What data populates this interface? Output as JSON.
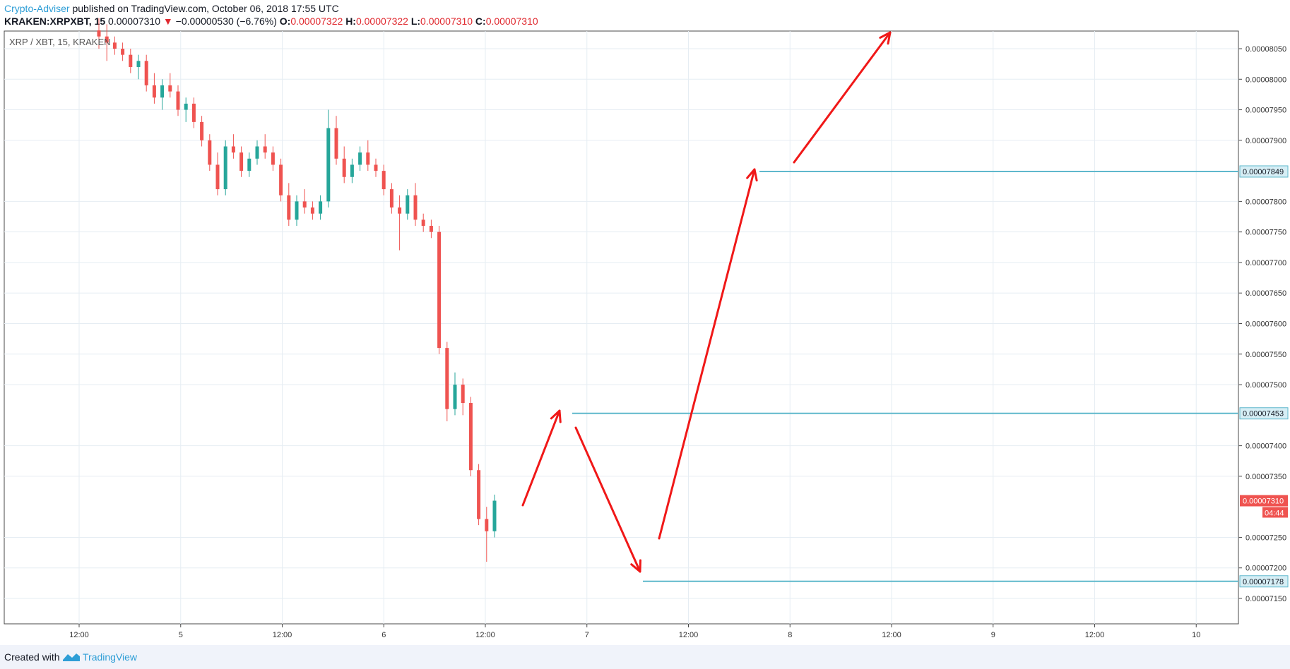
{
  "header": {
    "author": "Crypto-Adviser",
    "published_text": " published on TradingView.com, October 06, 2018 17:55 UTC",
    "symbol_line": "KRAKEN:XRPXBT, 15",
    "last_value": "0.00007310",
    "change_arrow": "▼",
    "change": "−0.00000530 (−6.76%)",
    "o_label": "O:",
    "o_value": "0.00007322",
    "h_label": "H:",
    "h_value": "0.00007322",
    "l_label": "L:",
    "l_value": "0.00007310",
    "c_label": "C:",
    "c_value": "0.00007310"
  },
  "chart_title": "XRP / XBT, 15, KRAKEN",
  "footer": {
    "created_with": "Created with",
    "brand": "TradingView"
  },
  "colors": {
    "up": "#26a69a",
    "down": "#ef5350",
    "level_line": "#5fb8cc",
    "arrow": "#f01818",
    "grid": "#e6edf3",
    "price_tag": "#ef5350"
  },
  "chart_data": {
    "type": "candlestick",
    "symbol": "XRP / XBT, 15, KRAKEN",
    "y_ticks": [
      "0.00008050",
      "0.00008000",
      "0.00007950",
      "0.00007900",
      "0.00007800",
      "0.00007750",
      "0.00007700",
      "0.00007650",
      "0.00007600",
      "0.00007550",
      "0.00007500",
      "0.00007400",
      "0.00007350",
      "0.00007250",
      "0.00007200",
      "0.00007150"
    ],
    "x_ticks": [
      "12:00",
      "5",
      "12:00",
      "6",
      "12:00",
      "7",
      "12:00",
      "8",
      "12:00",
      "9",
      "12:00",
      "10"
    ],
    "levels": [
      {
        "value": "0.00007849"
      },
      {
        "value": "0.00007453"
      },
      {
        "value": "0.00007178"
      }
    ],
    "current_price": {
      "value": "0.00007310",
      "countdown": "04:44"
    },
    "candles": [
      [
        8.08e-05,
        8.1e-05,
        8.05e-05,
        8.07e-05
      ],
      [
        8.07e-05,
        8.09e-05,
        8.03e-05,
        8.06e-05
      ],
      [
        8.06e-05,
        8.07e-05,
        8.04e-05,
        8.05e-05
      ],
      [
        8.05e-05,
        8.06e-05,
        8.03e-05,
        8.04e-05
      ],
      [
        8.04e-05,
        8.05e-05,
        8.01e-05,
        8.02e-05
      ],
      [
        8.02e-05,
        8.04e-05,
        8e-05,
        8.03e-05
      ],
      [
        8.03e-05,
        8.04e-05,
        7.98e-05,
        7.99e-05
      ],
      [
        7.99e-05,
        8.01e-05,
        7.96e-05,
        7.97e-05
      ],
      [
        7.97e-05,
        8e-05,
        7.95e-05,
        7.99e-05
      ],
      [
        7.99e-05,
        8.01e-05,
        7.97e-05,
        7.98e-05
      ],
      [
        7.98e-05,
        7.99e-05,
        7.94e-05,
        7.95e-05
      ],
      [
        7.95e-05,
        7.97e-05,
        7.93e-05,
        7.96e-05
      ],
      [
        7.96e-05,
        7.97e-05,
        7.92e-05,
        7.93e-05
      ],
      [
        7.93e-05,
        7.94e-05,
        7.89e-05,
        7.9e-05
      ],
      [
        7.9e-05,
        7.91e-05,
        7.85e-05,
        7.86e-05
      ],
      [
        7.86e-05,
        7.88e-05,
        7.81e-05,
        7.82e-05
      ],
      [
        7.82e-05,
        7.9e-05,
        7.81e-05,
        7.89e-05
      ],
      [
        7.89e-05,
        7.91e-05,
        7.87e-05,
        7.88e-05
      ],
      [
        7.88e-05,
        7.89e-05,
        7.84e-05,
        7.85e-05
      ],
      [
        7.85e-05,
        7.88e-05,
        7.84e-05,
        7.87e-05
      ],
      [
        7.87e-05,
        7.9e-05,
        7.86e-05,
        7.89e-05
      ],
      [
        7.89e-05,
        7.91e-05,
        7.87e-05,
        7.88e-05
      ],
      [
        7.88e-05,
        7.89e-05,
        7.85e-05,
        7.86e-05
      ],
      [
        7.86e-05,
        7.87e-05,
        7.8e-05,
        7.81e-05
      ],
      [
        7.81e-05,
        7.83e-05,
        7.76e-05,
        7.77e-05
      ],
      [
        7.77e-05,
        7.81e-05,
        7.76e-05,
        7.8e-05
      ],
      [
        7.8e-05,
        7.82e-05,
        7.78e-05,
        7.79e-05
      ],
      [
        7.79e-05,
        7.8e-05,
        7.77e-05,
        7.78e-05
      ],
      [
        7.78e-05,
        7.81e-05,
        7.77e-05,
        7.8e-05
      ],
      [
        7.8e-05,
        7.95e-05,
        7.79e-05,
        7.92e-05
      ],
      [
        7.92e-05,
        7.94e-05,
        7.86e-05,
        7.87e-05
      ],
      [
        7.87e-05,
        7.89e-05,
        7.83e-05,
        7.84e-05
      ],
      [
        7.84e-05,
        7.87e-05,
        7.83e-05,
        7.86e-05
      ],
      [
        7.86e-05,
        7.89e-05,
        7.85e-05,
        7.88e-05
      ],
      [
        7.88e-05,
        7.9e-05,
        7.85e-05,
        7.86e-05
      ],
      [
        7.86e-05,
        7.87e-05,
        7.84e-05,
        7.85e-05
      ],
      [
        7.85e-05,
        7.86e-05,
        7.81e-05,
        7.82e-05
      ],
      [
        7.82e-05,
        7.83e-05,
        7.78e-05,
        7.79e-05
      ],
      [
        7.79e-05,
        7.81e-05,
        7.72e-05,
        7.78e-05
      ],
      [
        7.78e-05,
        7.82e-05,
        7.77e-05,
        7.81e-05
      ],
      [
        7.81e-05,
        7.83e-05,
        7.76e-05,
        7.77e-05
      ],
      [
        7.77e-05,
        7.78e-05,
        7.75e-05,
        7.76e-05
      ],
      [
        7.76e-05,
        7.77e-05,
        7.74e-05,
        7.75e-05
      ],
      [
        7.75e-05,
        7.76e-05,
        7.55e-05,
        7.56e-05
      ],
      [
        7.56e-05,
        7.57e-05,
        7.44e-05,
        7.46e-05
      ],
      [
        7.46e-05,
        7.52e-05,
        7.45e-05,
        7.5e-05
      ],
      [
        7.5e-05,
        7.51e-05,
        7.45e-05,
        7.47e-05
      ],
      [
        7.47e-05,
        7.48e-05,
        7.35e-05,
        7.36e-05
      ],
      [
        7.36e-05,
        7.37e-05,
        7.27e-05,
        7.28e-05
      ],
      [
        7.28e-05,
        7.3e-05,
        7.21e-05,
        7.26e-05
      ],
      [
        7.26e-05,
        7.32e-05,
        7.25e-05,
        7.31e-05
      ]
    ]
  }
}
